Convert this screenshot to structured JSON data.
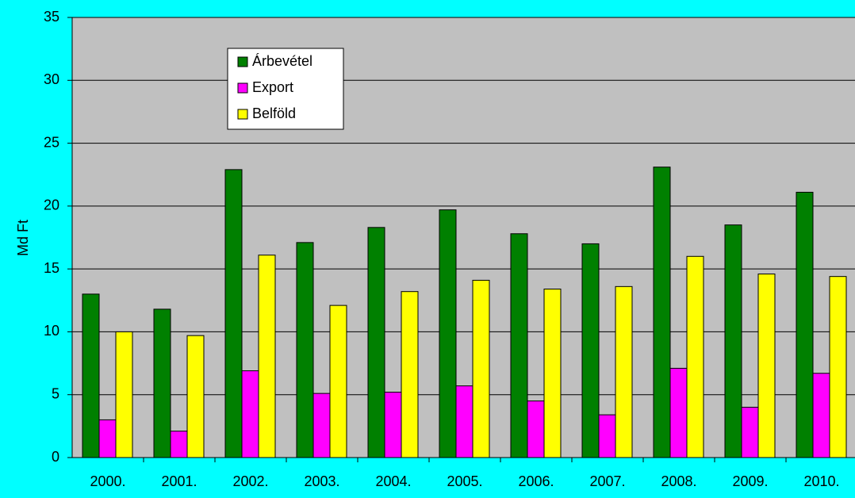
{
  "chart_data": {
    "type": "bar",
    "ylabel": "Md Ft",
    "categories": [
      "2000.",
      "2001.",
      "2002.",
      "2003.",
      "2004.",
      "2005.",
      "2006.",
      "2007.",
      "2008.",
      "2009.",
      "2010."
    ],
    "series": [
      {
        "name": "Árbevétel",
        "color": "#008000",
        "values": [
          13,
          11.8,
          22.9,
          17.1,
          18.3,
          19.7,
          17.8,
          17.0,
          23.1,
          18.5,
          21.1
        ]
      },
      {
        "name": "Export",
        "color": "#ff00ff",
        "values": [
          3,
          2.1,
          6.9,
          5.1,
          5.2,
          5.7,
          4.5,
          3.4,
          7.1,
          4.0,
          6.7
        ]
      },
      {
        "name": "Belföld",
        "color": "#ffff00",
        "values": [
          10,
          9.7,
          16.1,
          12.1,
          13.2,
          14.1,
          13.4,
          13.6,
          16.0,
          14.6,
          14.4
        ]
      }
    ],
    "ylim": [
      0,
      35
    ],
    "yticks": [
      0,
      5,
      10,
      15,
      20,
      25,
      30,
      35
    ],
    "grid": true,
    "legend": "upper left"
  }
}
